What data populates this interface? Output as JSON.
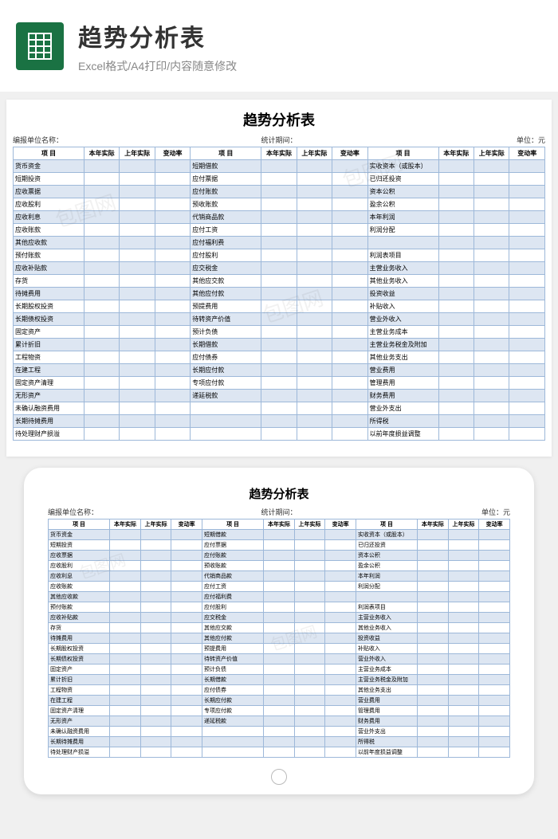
{
  "header": {
    "title": "趋势分析表",
    "subtitle": "Excel格式/A4打印/内容随意修改"
  },
  "sheet": {
    "title": "趋势分析表",
    "meta": {
      "left": "编报单位名称：",
      "center": "统计期间：",
      "right": "单位：元"
    },
    "headers": [
      "项  目",
      "本年实际",
      "上年实际",
      "变动率",
      "项  目",
      "本年实际",
      "上年实际",
      "变动率",
      "项  目",
      "本年实际",
      "上年实际",
      "变动率"
    ],
    "rows": [
      [
        "货币资金",
        "",
        "",
        "",
        "短期借款",
        "",
        "",
        "",
        "实收资本（或股本）",
        "",
        "",
        ""
      ],
      [
        "短期投资",
        "",
        "",
        "",
        "应付票据",
        "",
        "",
        "",
        "已归还投资",
        "",
        "",
        ""
      ],
      [
        "应收票据",
        "",
        "",
        "",
        "应付账款",
        "",
        "",
        "",
        "资本公积",
        "",
        "",
        ""
      ],
      [
        "应收股利",
        "",
        "",
        "",
        "预收账款",
        "",
        "",
        "",
        "盈余公积",
        "",
        "",
        ""
      ],
      [
        "应收利息",
        "",
        "",
        "",
        "代销商品款",
        "",
        "",
        "",
        "本年利润",
        "",
        "",
        ""
      ],
      [
        "应收账款",
        "",
        "",
        "",
        "应付工资",
        "",
        "",
        "",
        "利润分配",
        "",
        "",
        ""
      ],
      [
        "其他应收款",
        "",
        "",
        "",
        "应付福利费",
        "",
        "",
        "",
        "",
        "",
        "",
        ""
      ],
      [
        "预付账款",
        "",
        "",
        "",
        "应付股利",
        "",
        "",
        "",
        "  利润表项目",
        "",
        "",
        ""
      ],
      [
        "应收补贴款",
        "",
        "",
        "",
        "应交税金",
        "",
        "",
        "",
        "主营业务收入",
        "",
        "",
        ""
      ],
      [
        "存货",
        "",
        "",
        "",
        "其他应交款",
        "",
        "",
        "",
        "其他业务收入",
        "",
        "",
        ""
      ],
      [
        "待摊费用",
        "",
        "",
        "",
        "其他应付款",
        "",
        "",
        "",
        "投资收益",
        "",
        "",
        ""
      ],
      [
        "长期股权投资",
        "",
        "",
        "",
        "预提费用",
        "",
        "",
        "",
        "补贴收入",
        "",
        "",
        ""
      ],
      [
        "长期债权投资",
        "",
        "",
        "",
        "待转资产价值",
        "",
        "",
        "",
        "营业外收入",
        "",
        "",
        ""
      ],
      [
        "固定资产",
        "",
        "",
        "",
        "预计负债",
        "",
        "",
        "",
        "主营业务成本",
        "",
        "",
        ""
      ],
      [
        "累计折旧",
        "",
        "",
        "",
        "长期借款",
        "",
        "",
        "",
        "主营业务税金及附加",
        "",
        "",
        ""
      ],
      [
        "工程物资",
        "",
        "",
        "",
        "应付债券",
        "",
        "",
        "",
        "其他业务支出",
        "",
        "",
        ""
      ],
      [
        "在建工程",
        "",
        "",
        "",
        "长期应付款",
        "",
        "",
        "",
        "营业费用",
        "",
        "",
        ""
      ],
      [
        "固定资产清理",
        "",
        "",
        "",
        "专项应付款",
        "",
        "",
        "",
        "管理费用",
        "",
        "",
        ""
      ],
      [
        "无形资产",
        "",
        "",
        "",
        "递延税款",
        "",
        "",
        "",
        "财务费用",
        "",
        "",
        ""
      ],
      [
        "未确认融资费用",
        "",
        "",
        "",
        "",
        "",
        "",
        "",
        "营业外支出",
        "",
        "",
        ""
      ],
      [
        "长期待摊费用",
        "",
        "",
        "",
        "",
        "",
        "",
        "",
        "所得税",
        "",
        "",
        ""
      ],
      [
        "待处理财产损溢",
        "",
        "",
        "",
        "",
        "",
        "",
        "",
        "以前年度损益调整",
        "",
        "",
        ""
      ]
    ],
    "colors": {
      "row_odd_bg": "#dde6f2",
      "row_even_bg": "#ffffff",
      "border": "#9db8d9"
    }
  },
  "watermark": "包图网"
}
